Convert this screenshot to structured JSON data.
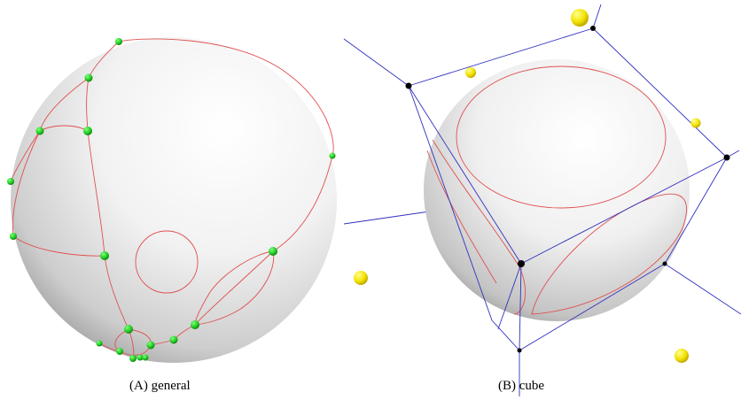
{
  "figure": {
    "panels": [
      {
        "tag": "(A)",
        "label": "general"
      },
      {
        "tag": "(B)",
        "label": "cube"
      }
    ]
  },
  "colors": {
    "curve": "#e05050",
    "vertex": "#22cc22",
    "cube_edge": "#3030c0",
    "cube_vertex": "#000000",
    "light_sphere": "#f2e200"
  }
}
